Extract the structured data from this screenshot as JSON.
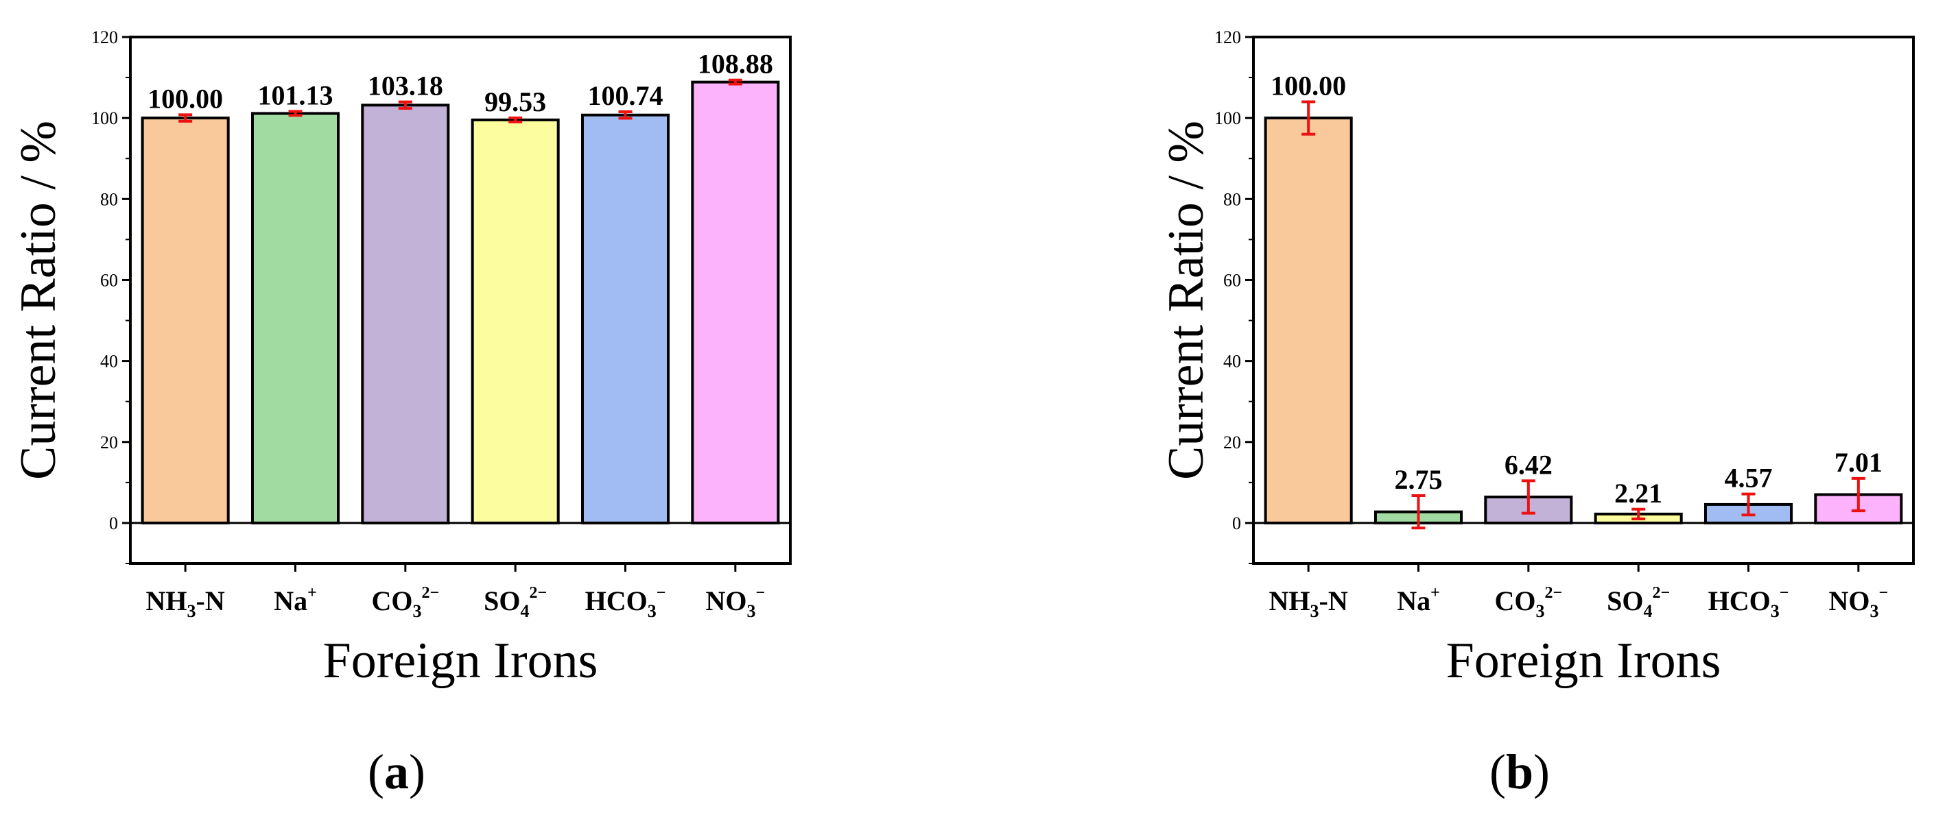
{
  "chart_data": [
    {
      "type": "bar",
      "panel_label": "a",
      "ylabel": "Current  Ratio / %",
      "xlabel": "Foreign Irons",
      "ylim": [
        -10,
        120
      ],
      "yticks": [
        0,
        20,
        40,
        60,
        80,
        100,
        120
      ],
      "categories": [
        {
          "base": "NH",
          "sub": "3",
          "rest": "-N",
          "sup": ""
        },
        {
          "base": "Na",
          "sub": "",
          "rest": "",
          "sup": "+"
        },
        {
          "base": "CO",
          "sub": "3",
          "rest": "",
          "sup": "2−"
        },
        {
          "base": "SO",
          "sub": "4",
          "rest": "",
          "sup": "2−"
        },
        {
          "base": "HCO",
          "sub": "3",
          "rest": "",
          "sup": "−"
        },
        {
          "base": "NO",
          "sub": "3",
          "rest": "",
          "sup": "−"
        }
      ],
      "values": [
        100.0,
        101.13,
        103.18,
        99.53,
        100.74,
        108.88
      ],
      "value_labels": [
        "100.00",
        "101.13",
        "103.18",
        "99.53",
        "100.74",
        "108.88"
      ],
      "errors": [
        0.8,
        0.5,
        0.8,
        0.5,
        0.8,
        0.5
      ],
      "colors": [
        "#f9c89b",
        "#a2dba1",
        "#c2b2d8",
        "#fcfd9f",
        "#a0bcf3",
        "#fdb3fb"
      ],
      "error_color": "#ee1111"
    },
    {
      "type": "bar",
      "panel_label": "b",
      "ylabel": "Current  Ratio / %",
      "xlabel": "Foreign Irons",
      "ylim": [
        -10,
        120
      ],
      "yticks": [
        0,
        20,
        40,
        60,
        80,
        100,
        120
      ],
      "categories": [
        {
          "base": "NH",
          "sub": "3",
          "rest": "-N",
          "sup": ""
        },
        {
          "base": "Na",
          "sub": "",
          "rest": "",
          "sup": "+"
        },
        {
          "base": "CO",
          "sub": "3",
          "rest": "",
          "sup": "2−"
        },
        {
          "base": "SO",
          "sub": "4",
          "rest": "",
          "sup": "2−"
        },
        {
          "base": "HCO",
          "sub": "3",
          "rest": "",
          "sup": "−"
        },
        {
          "base": "NO",
          "sub": "3",
          "rest": "",
          "sup": "−"
        }
      ],
      "values": [
        100.0,
        2.75,
        6.42,
        2.21,
        4.57,
        7.01
      ],
      "value_labels": [
        "100.00",
        "2.75",
        "6.42",
        "2.21",
        "4.57",
        "7.01"
      ],
      "errors": [
        4.0,
        4.0,
        4.0,
        1.2,
        2.6,
        4.0
      ],
      "colors": [
        "#f9c89b",
        "#a2dba1",
        "#c2b2d8",
        "#fcfd9f",
        "#a0bcf3",
        "#fdb3fb"
      ],
      "error_color": "#ee1111"
    }
  ]
}
